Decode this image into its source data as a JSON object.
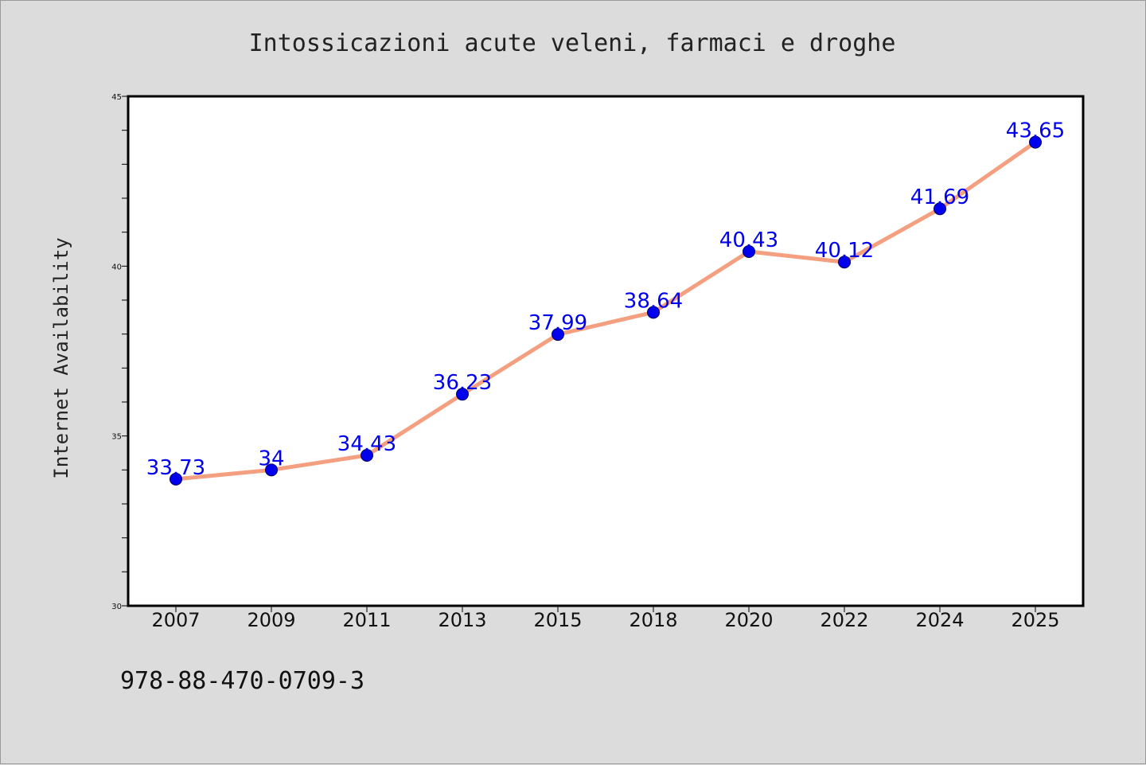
{
  "chart_data": {
    "type": "line",
    "title": "Intossicazioni acute veleni, farmaci e droghe",
    "xlabel": "",
    "ylabel": "Internet Availability",
    "categories": [
      "2007",
      "2009",
      "2011",
      "2013",
      "2015",
      "2018",
      "2020",
      "2022",
      "2024",
      "2025"
    ],
    "series": [
      {
        "values": [
          33.73,
          34,
          34.43,
          36.23,
          37.99,
          38.64,
          40.43,
          40.12,
          41.69,
          43.65
        ],
        "data_labels": [
          "33.73",
          "34",
          "34.43",
          "36.23",
          "37.99",
          "38.64",
          "40.43",
          "40.12",
          "41.69",
          "43.65"
        ],
        "line_color": "#f4a080",
        "marker_color": "#0000ee"
      }
    ],
    "ylim": [
      30,
      45
    ],
    "yticks": [
      "30",
      "35",
      "40",
      "45"
    ],
    "grid": false,
    "legend": "none",
    "footnote": "978-88-470-0709-3",
    "colors": {
      "background": "#dcdcdc",
      "plot_background": "#ffffff",
      "axis": "#000000"
    }
  }
}
